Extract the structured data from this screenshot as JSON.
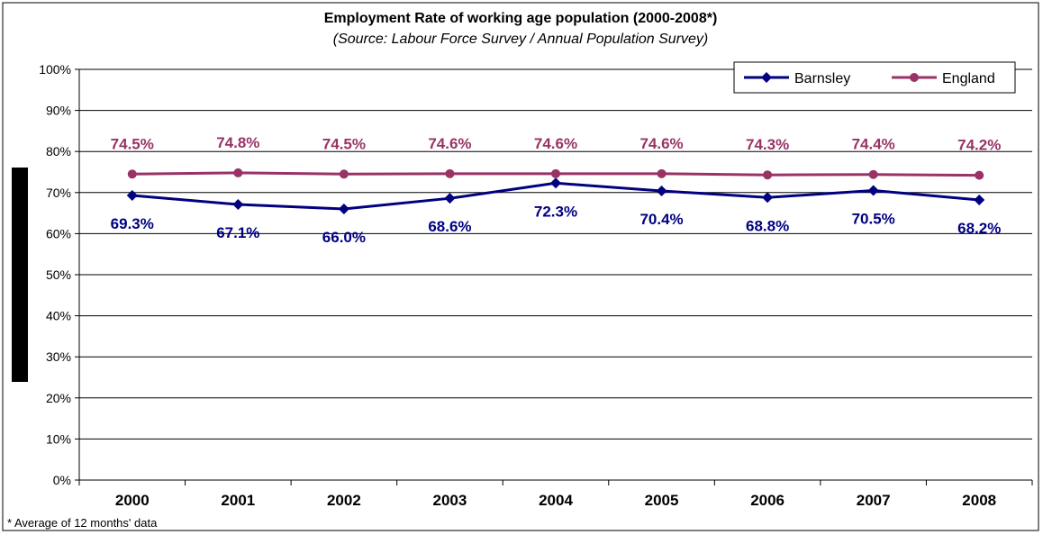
{
  "chart_data": {
    "type": "line",
    "title": "Employment Rate of working age population (2000-2008*)",
    "subtitle": "(Source: Labour Force Survey / Annual Population Survey)",
    "footnote": "* Average of 12 months' data",
    "categories": [
      "2000",
      "2001",
      "2002",
      "2003",
      "2004",
      "2005",
      "2006",
      "2007",
      "2008"
    ],
    "series": [
      {
        "name": "Barnsley",
        "color": "#000080",
        "marker": "diamond",
        "values": [
          69.3,
          67.1,
          66.0,
          68.6,
          72.3,
          70.4,
          68.8,
          70.5,
          68.2
        ],
        "labels": [
          "69.3%",
          "67.1%",
          "66.0%",
          "68.6%",
          "72.3%",
          "70.4%",
          "68.8%",
          "70.5%",
          "68.2%"
        ]
      },
      {
        "name": "England",
        "color": "#993366",
        "marker": "circle",
        "values": [
          74.5,
          74.8,
          74.5,
          74.6,
          74.6,
          74.6,
          74.3,
          74.4,
          74.2
        ],
        "labels": [
          "74.5%",
          "74.8%",
          "74.5%",
          "74.6%",
          "74.6%",
          "74.6%",
          "74.3%",
          "74.4%",
          "74.2%"
        ]
      }
    ],
    "ylim": [
      0,
      100
    ],
    "yticks": [
      "0%",
      "10%",
      "20%",
      "30%",
      "40%",
      "50%",
      "60%",
      "70%",
      "80%",
      "90%",
      "100%"
    ],
    "grid": true,
    "legend": "top-right"
  }
}
